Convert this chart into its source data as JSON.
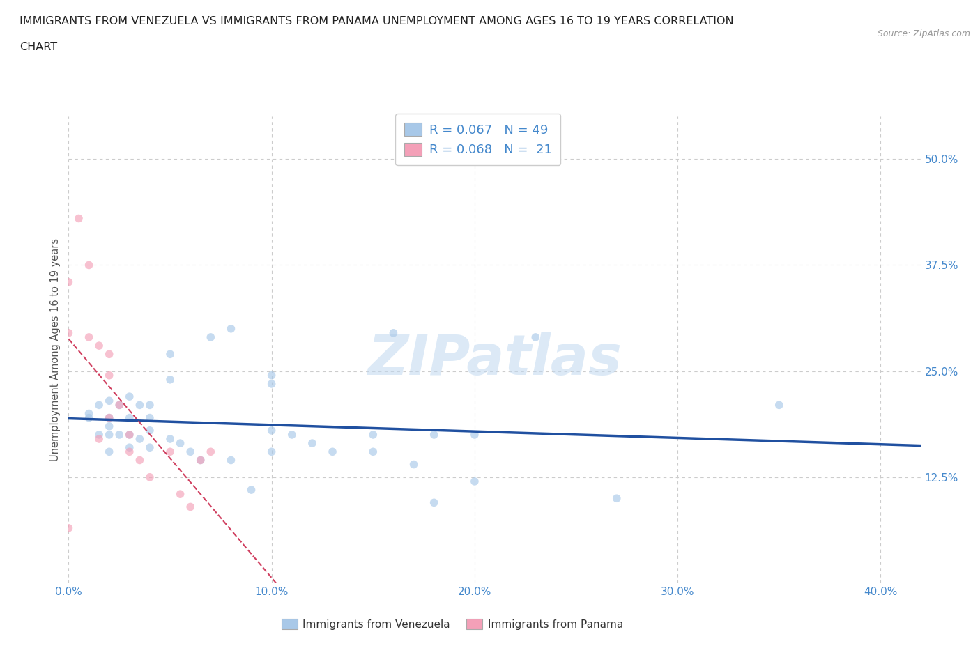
{
  "title_line1": "IMMIGRANTS FROM VENEZUELA VS IMMIGRANTS FROM PANAMA UNEMPLOYMENT AMONG AGES 16 TO 19 YEARS CORRELATION",
  "title_line2": "CHART",
  "source": "Source: ZipAtlas.com",
  "ylabel": "Unemployment Among Ages 16 to 19 years",
  "watermark": "ZIPatlas",
  "x_tick_labels": [
    "0.0%",
    "10.0%",
    "20.0%",
    "30.0%",
    "40.0%"
  ],
  "x_tick_values": [
    0.0,
    0.1,
    0.2,
    0.3,
    0.4
  ],
  "y_tick_labels": [
    "12.5%",
    "25.0%",
    "37.5%",
    "50.0%"
  ],
  "y_tick_values": [
    0.125,
    0.25,
    0.375,
    0.5
  ],
  "xlim": [
    0.0,
    0.42
  ],
  "ylim": [
    0.0,
    0.55
  ],
  "R_venezuela": 0.067,
  "N_venezuela": 49,
  "R_panama": 0.068,
  "N_panama": 21,
  "color_venezuela": "#a8c8e8",
  "color_panama": "#f4a0b8",
  "color_venezuela_line": "#2050a0",
  "color_panama_line": "#d04060",
  "legend_label_venezuela": "Immigrants from Venezuela",
  "legend_label_panama": "Immigrants from Panama",
  "venezuela_x": [
    0.01,
    0.01,
    0.015,
    0.015,
    0.02,
    0.02,
    0.02,
    0.02,
    0.02,
    0.025,
    0.025,
    0.03,
    0.03,
    0.03,
    0.03,
    0.035,
    0.035,
    0.04,
    0.04,
    0.04,
    0.04,
    0.05,
    0.05,
    0.05,
    0.055,
    0.06,
    0.065,
    0.07,
    0.08,
    0.08,
    0.09,
    0.1,
    0.1,
    0.1,
    0.1,
    0.11,
    0.12,
    0.13,
    0.15,
    0.15,
    0.16,
    0.17,
    0.18,
    0.18,
    0.2,
    0.2,
    0.23,
    0.27,
    0.35
  ],
  "venezuela_y": [
    0.2,
    0.195,
    0.21,
    0.175,
    0.215,
    0.195,
    0.185,
    0.175,
    0.155,
    0.21,
    0.175,
    0.22,
    0.195,
    0.175,
    0.16,
    0.21,
    0.17,
    0.21,
    0.195,
    0.18,
    0.16,
    0.27,
    0.24,
    0.17,
    0.165,
    0.155,
    0.145,
    0.29,
    0.3,
    0.145,
    0.11,
    0.245,
    0.235,
    0.18,
    0.155,
    0.175,
    0.165,
    0.155,
    0.175,
    0.155,
    0.295,
    0.14,
    0.175,
    0.095,
    0.175,
    0.12,
    0.29,
    0.1,
    0.21
  ],
  "panama_x": [
    0.0,
    0.0,
    0.0,
    0.005,
    0.01,
    0.01,
    0.015,
    0.015,
    0.02,
    0.02,
    0.02,
    0.025,
    0.03,
    0.03,
    0.035,
    0.04,
    0.05,
    0.055,
    0.06,
    0.065,
    0.07
  ],
  "panama_y": [
    0.355,
    0.295,
    0.065,
    0.43,
    0.375,
    0.29,
    0.28,
    0.17,
    0.27,
    0.245,
    0.195,
    0.21,
    0.175,
    0.155,
    0.145,
    0.125,
    0.155,
    0.105,
    0.09,
    0.145,
    0.155
  ],
  "background_color": "#ffffff",
  "grid_color": "#cccccc",
  "tick_color": "#4488cc",
  "title_color": "#222222",
  "dot_size": 70,
  "dot_alpha": 0.65
}
